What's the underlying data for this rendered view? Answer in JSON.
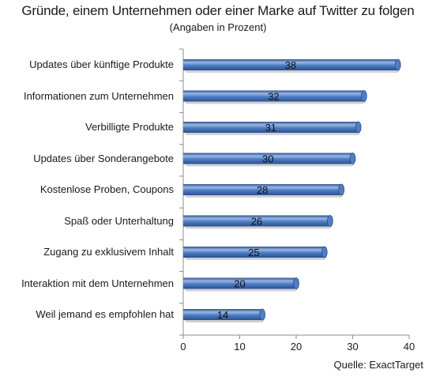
{
  "chart_data": {
    "type": "bar",
    "orientation": "horizontal",
    "title": "Gründe, einem Unternehmen oder einer Marke auf Twitter zu folgen",
    "subtitle": "(Angaben in Prozent)",
    "categories": [
      "Updates über künftige Produkte",
      "Informationen zum Unternehmen",
      "Verbilligte Produkte",
      "Updates über Sonderangebote",
      "Kostenlose Proben, Coupons",
      "Spaß oder Unterhaltung",
      "Zugang zu exklusivem Inhalt",
      "Interaktion mit dem Unternehmen",
      "Weil jemand es empfohlen hat"
    ],
    "values": [
      38,
      32,
      31,
      30,
      28,
      26,
      25,
      20,
      14
    ],
    "xlim": [
      0,
      40
    ],
    "xticks": [
      0,
      10,
      20,
      30,
      40
    ],
    "grid": false,
    "bar_style": "3d-cylinder",
    "colors": {
      "bar": "#4f7ec4",
      "bar_dark": "#2b4f8f",
      "bar_light": "#9ab8e6",
      "axis": "#8c8c8c"
    },
    "source": "Quelle: ExactTarget"
  }
}
